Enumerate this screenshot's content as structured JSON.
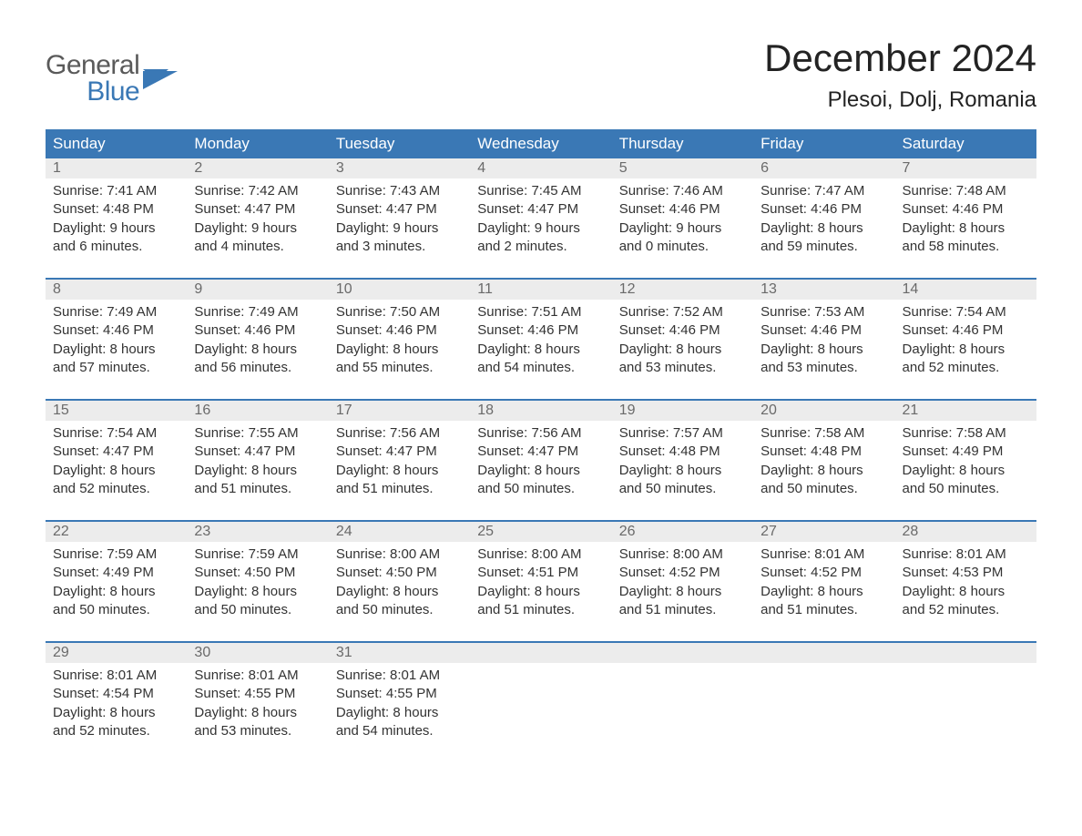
{
  "brand": {
    "top": "General",
    "bottom": "Blue",
    "text_color_top": "#5a5a5a",
    "text_color_bottom": "#3a78b5"
  },
  "header": {
    "month_title": "December 2024",
    "location": "Plesoi, Dolj, Romania"
  },
  "colors": {
    "header_bg": "#3a78b5",
    "header_text": "#ffffff",
    "date_bar_bg": "#ececec",
    "date_text": "#6a6a6a",
    "body_text": "#333333",
    "week_divider": "#3a78b5",
    "page_bg": "#ffffff"
  },
  "calendar": {
    "days_of_week": [
      "Sunday",
      "Monday",
      "Tuesday",
      "Wednesday",
      "Thursday",
      "Friday",
      "Saturday"
    ],
    "weeks": [
      [
        {
          "date": "1",
          "sunrise": "Sunrise: 7:41 AM",
          "sunset": "Sunset: 4:48 PM",
          "daylight1": "Daylight: 9 hours",
          "daylight2": "and 6 minutes."
        },
        {
          "date": "2",
          "sunrise": "Sunrise: 7:42 AM",
          "sunset": "Sunset: 4:47 PM",
          "daylight1": "Daylight: 9 hours",
          "daylight2": "and 4 minutes."
        },
        {
          "date": "3",
          "sunrise": "Sunrise: 7:43 AM",
          "sunset": "Sunset: 4:47 PM",
          "daylight1": "Daylight: 9 hours",
          "daylight2": "and 3 minutes."
        },
        {
          "date": "4",
          "sunrise": "Sunrise: 7:45 AM",
          "sunset": "Sunset: 4:47 PM",
          "daylight1": "Daylight: 9 hours",
          "daylight2": "and 2 minutes."
        },
        {
          "date": "5",
          "sunrise": "Sunrise: 7:46 AM",
          "sunset": "Sunset: 4:46 PM",
          "daylight1": "Daylight: 9 hours",
          "daylight2": "and 0 minutes."
        },
        {
          "date": "6",
          "sunrise": "Sunrise: 7:47 AM",
          "sunset": "Sunset: 4:46 PM",
          "daylight1": "Daylight: 8 hours",
          "daylight2": "and 59 minutes."
        },
        {
          "date": "7",
          "sunrise": "Sunrise: 7:48 AM",
          "sunset": "Sunset: 4:46 PM",
          "daylight1": "Daylight: 8 hours",
          "daylight2": "and 58 minutes."
        }
      ],
      [
        {
          "date": "8",
          "sunrise": "Sunrise: 7:49 AM",
          "sunset": "Sunset: 4:46 PM",
          "daylight1": "Daylight: 8 hours",
          "daylight2": "and 57 minutes."
        },
        {
          "date": "9",
          "sunrise": "Sunrise: 7:49 AM",
          "sunset": "Sunset: 4:46 PM",
          "daylight1": "Daylight: 8 hours",
          "daylight2": "and 56 minutes."
        },
        {
          "date": "10",
          "sunrise": "Sunrise: 7:50 AM",
          "sunset": "Sunset: 4:46 PM",
          "daylight1": "Daylight: 8 hours",
          "daylight2": "and 55 minutes."
        },
        {
          "date": "11",
          "sunrise": "Sunrise: 7:51 AM",
          "sunset": "Sunset: 4:46 PM",
          "daylight1": "Daylight: 8 hours",
          "daylight2": "and 54 minutes."
        },
        {
          "date": "12",
          "sunrise": "Sunrise: 7:52 AM",
          "sunset": "Sunset: 4:46 PM",
          "daylight1": "Daylight: 8 hours",
          "daylight2": "and 53 minutes."
        },
        {
          "date": "13",
          "sunrise": "Sunrise: 7:53 AM",
          "sunset": "Sunset: 4:46 PM",
          "daylight1": "Daylight: 8 hours",
          "daylight2": "and 53 minutes."
        },
        {
          "date": "14",
          "sunrise": "Sunrise: 7:54 AM",
          "sunset": "Sunset: 4:46 PM",
          "daylight1": "Daylight: 8 hours",
          "daylight2": "and 52 minutes."
        }
      ],
      [
        {
          "date": "15",
          "sunrise": "Sunrise: 7:54 AM",
          "sunset": "Sunset: 4:47 PM",
          "daylight1": "Daylight: 8 hours",
          "daylight2": "and 52 minutes."
        },
        {
          "date": "16",
          "sunrise": "Sunrise: 7:55 AM",
          "sunset": "Sunset: 4:47 PM",
          "daylight1": "Daylight: 8 hours",
          "daylight2": "and 51 minutes."
        },
        {
          "date": "17",
          "sunrise": "Sunrise: 7:56 AM",
          "sunset": "Sunset: 4:47 PM",
          "daylight1": "Daylight: 8 hours",
          "daylight2": "and 51 minutes."
        },
        {
          "date": "18",
          "sunrise": "Sunrise: 7:56 AM",
          "sunset": "Sunset: 4:47 PM",
          "daylight1": "Daylight: 8 hours",
          "daylight2": "and 50 minutes."
        },
        {
          "date": "19",
          "sunrise": "Sunrise: 7:57 AM",
          "sunset": "Sunset: 4:48 PM",
          "daylight1": "Daylight: 8 hours",
          "daylight2": "and 50 minutes."
        },
        {
          "date": "20",
          "sunrise": "Sunrise: 7:58 AM",
          "sunset": "Sunset: 4:48 PM",
          "daylight1": "Daylight: 8 hours",
          "daylight2": "and 50 minutes."
        },
        {
          "date": "21",
          "sunrise": "Sunrise: 7:58 AM",
          "sunset": "Sunset: 4:49 PM",
          "daylight1": "Daylight: 8 hours",
          "daylight2": "and 50 minutes."
        }
      ],
      [
        {
          "date": "22",
          "sunrise": "Sunrise: 7:59 AM",
          "sunset": "Sunset: 4:49 PM",
          "daylight1": "Daylight: 8 hours",
          "daylight2": "and 50 minutes."
        },
        {
          "date": "23",
          "sunrise": "Sunrise: 7:59 AM",
          "sunset": "Sunset: 4:50 PM",
          "daylight1": "Daylight: 8 hours",
          "daylight2": "and 50 minutes."
        },
        {
          "date": "24",
          "sunrise": "Sunrise: 8:00 AM",
          "sunset": "Sunset: 4:50 PM",
          "daylight1": "Daylight: 8 hours",
          "daylight2": "and 50 minutes."
        },
        {
          "date": "25",
          "sunrise": "Sunrise: 8:00 AM",
          "sunset": "Sunset: 4:51 PM",
          "daylight1": "Daylight: 8 hours",
          "daylight2": "and 51 minutes."
        },
        {
          "date": "26",
          "sunrise": "Sunrise: 8:00 AM",
          "sunset": "Sunset: 4:52 PM",
          "daylight1": "Daylight: 8 hours",
          "daylight2": "and 51 minutes."
        },
        {
          "date": "27",
          "sunrise": "Sunrise: 8:01 AM",
          "sunset": "Sunset: 4:52 PM",
          "daylight1": "Daylight: 8 hours",
          "daylight2": "and 51 minutes."
        },
        {
          "date": "28",
          "sunrise": "Sunrise: 8:01 AM",
          "sunset": "Sunset: 4:53 PM",
          "daylight1": "Daylight: 8 hours",
          "daylight2": "and 52 minutes."
        }
      ],
      [
        {
          "date": "29",
          "sunrise": "Sunrise: 8:01 AM",
          "sunset": "Sunset: 4:54 PM",
          "daylight1": "Daylight: 8 hours",
          "daylight2": "and 52 minutes."
        },
        {
          "date": "30",
          "sunrise": "Sunrise: 8:01 AM",
          "sunset": "Sunset: 4:55 PM",
          "daylight1": "Daylight: 8 hours",
          "daylight2": "and 53 minutes."
        },
        {
          "date": "31",
          "sunrise": "Sunrise: 8:01 AM",
          "sunset": "Sunset: 4:55 PM",
          "daylight1": "Daylight: 8 hours",
          "daylight2": "and 54 minutes."
        },
        {
          "date": "",
          "sunrise": "",
          "sunset": "",
          "daylight1": "",
          "daylight2": ""
        },
        {
          "date": "",
          "sunrise": "",
          "sunset": "",
          "daylight1": "",
          "daylight2": ""
        },
        {
          "date": "",
          "sunrise": "",
          "sunset": "",
          "daylight1": "",
          "daylight2": ""
        },
        {
          "date": "",
          "sunrise": "",
          "sunset": "",
          "daylight1": "",
          "daylight2": ""
        }
      ]
    ]
  }
}
